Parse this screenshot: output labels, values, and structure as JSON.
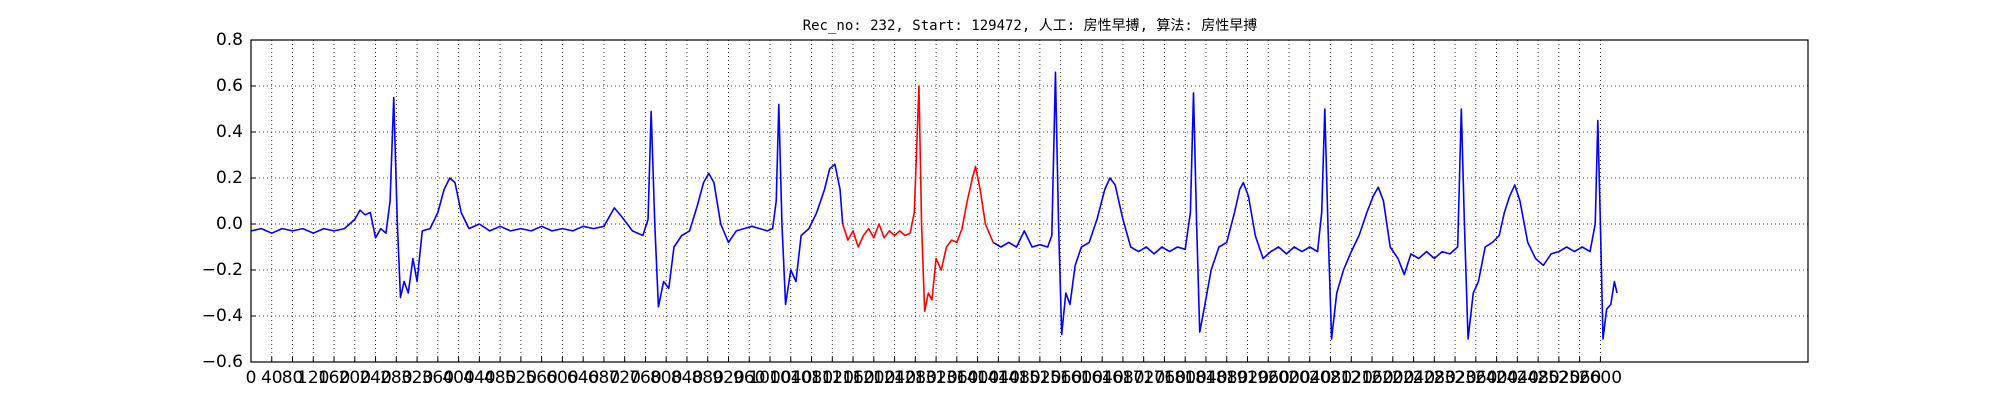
{
  "chart_data": {
    "type": "line",
    "title": "Rec_no: 232, Start: 129472, 人工: 房性早搏, 算法: 房性早搏",
    "xlim": [
      0,
      3000
    ],
    "ylim": [
      -0.6,
      0.8
    ],
    "xticks": [
      0,
      40,
      80,
      120,
      160,
      200,
      240,
      280,
      320,
      360,
      400,
      440,
      480,
      520,
      560,
      600,
      640,
      680,
      720,
      760,
      800,
      840,
      880,
      920,
      960,
      1000,
      1040,
      1080,
      1120,
      1160,
      1200,
      1240,
      1280,
      1320,
      1360,
      1400,
      1440,
      1480,
      1520,
      1560,
      1600,
      1640,
      1680,
      1720,
      1760,
      1800,
      1840,
      1880,
      1920,
      1960,
      2000,
      2040,
      2080,
      2120,
      2160,
      2200,
      2240,
      2280,
      2320,
      2360,
      2400,
      2440,
      2480,
      2520,
      2560,
      2600
    ],
    "yticks": [
      {
        "value": -0.6,
        "label": "−0.6"
      },
      {
        "value": -0.4,
        "label": "−0.4"
      },
      {
        "value": -0.2,
        "label": "−0.2"
      },
      {
        "value": 0,
        "label": "0.0"
      },
      0.2,
      0.4,
      0.6,
      0.8
    ],
    "grid": true,
    "series": [
      {
        "color": "#0000ff",
        "x": [
          0,
          20,
          40,
          60,
          80,
          100,
          120,
          140,
          160,
          180,
          200,
          210,
          220,
          230,
          240,
          250,
          260,
          268,
          275,
          282,
          288,
          295,
          303,
          312,
          320,
          330,
          345,
          360,
          372,
          383,
          393,
          405,
          420,
          440,
          460,
          480,
          500,
          520,
          540,
          560,
          580,
          600,
          620,
          640,
          660,
          680,
          700,
          715,
          735,
          755,
          765,
          771,
          778,
          785,
          795,
          805,
          815,
          830,
          845,
          860,
          872,
          882,
          892,
          905,
          920,
          935,
          950,
          965,
          980,
          995,
          1005,
          1012,
          1017,
          1023,
          1030,
          1040,
          1050,
          1060,
          1075,
          1090,
          1105,
          1115,
          1125,
          1135,
          1140
        ],
        "values": [
          -0.03,
          -0.02,
          -0.04,
          -0.02,
          -0.03,
          -0.02,
          -0.04,
          -0.02,
          -0.03,
          -0.02,
          0.02,
          0.06,
          0.04,
          0.05,
          -0.06,
          -0.02,
          -0.04,
          0.1,
          0.55,
          0.0,
          -0.32,
          -0.25,
          -0.3,
          -0.15,
          -0.25,
          -0.03,
          -0.02,
          0.05,
          0.15,
          0.2,
          0.18,
          0.05,
          -0.02,
          0.0,
          -0.03,
          -0.01,
          -0.03,
          -0.02,
          -0.03,
          -0.01,
          -0.03,
          -0.02,
          -0.03,
          -0.01,
          -0.02,
          -0.01,
          0.07,
          0.03,
          -0.03,
          -0.05,
          0.02,
          0.49,
          0.0,
          -0.36,
          -0.25,
          -0.28,
          -0.1,
          -0.05,
          -0.03,
          0.08,
          0.18,
          0.22,
          0.18,
          0.0,
          -0.08,
          -0.03,
          -0.02,
          -0.01,
          -0.02,
          -0.03,
          -0.02,
          0.1,
          0.52,
          0.0,
          -0.35,
          -0.2,
          -0.25,
          -0.05,
          -0.02,
          0.05,
          0.15,
          0.24,
          0.26,
          0.15,
          0.0
        ]
      },
      {
        "color": "#ff0000",
        "x": [
          1140,
          1150,
          1160,
          1170,
          1180,
          1190,
          1200,
          1210,
          1220,
          1230,
          1240,
          1250,
          1260,
          1270,
          1278,
          1287,
          1292,
          1298,
          1305,
          1312,
          1320,
          1330,
          1340,
          1350,
          1360,
          1370,
          1380,
          1390,
          1396,
          1405,
          1415,
          1430
        ],
        "values": [
          0.0,
          -0.07,
          -0.03,
          -0.1,
          -0.05,
          -0.02,
          -0.06,
          0.0,
          -0.06,
          -0.03,
          -0.05,
          -0.03,
          -0.05,
          -0.04,
          0.05,
          0.6,
          0.0,
          -0.38,
          -0.3,
          -0.33,
          -0.15,
          -0.2,
          -0.1,
          -0.07,
          -0.08,
          -0.02,
          0.1,
          0.2,
          0.25,
          0.15,
          0.0,
          -0.08
        ]
      },
      {
        "color": "#0000ff",
        "x": [
          1430,
          1445,
          1460,
          1475,
          1490,
          1505,
          1520,
          1535,
          1543,
          1550,
          1556,
          1562,
          1570,
          1578,
          1588,
          1600,
          1615,
          1630,
          1645,
          1655,
          1665,
          1680,
          1695,
          1710,
          1725,
          1740,
          1755,
          1770,
          1785,
          1800,
          1810,
          1816,
          1822,
          1828,
          1838,
          1850,
          1865,
          1880,
          1895,
          1905,
          1912,
          1922,
          1935,
          1950,
          1965,
          1980,
          1995,
          2010,
          2025,
          2040,
          2055,
          2063,
          2069,
          2075,
          2082,
          2092,
          2105,
          2120,
          2135,
          2150,
          2162,
          2172,
          2182,
          2195,
          2210,
          2222,
          2235,
          2250,
          2265,
          2280,
          2295,
          2310,
          2325,
          2332,
          2338,
          2345,
          2355,
          2365,
          2378,
          2392,
          2405,
          2415,
          2425,
          2435,
          2445,
          2460,
          2475,
          2490,
          2505,
          2520,
          2535,
          2550,
          2565,
          2580,
          2590,
          2595,
          2600,
          2605,
          2612,
          2620,
          2627,
          2632
        ],
        "values": [
          -0.08,
          -0.1,
          -0.08,
          -0.1,
          -0.03,
          -0.1,
          -0.09,
          -0.1,
          -0.05,
          0.66,
          0.0,
          -0.48,
          -0.3,
          -0.35,
          -0.18,
          -0.1,
          -0.08,
          0.02,
          0.15,
          0.2,
          0.17,
          0.02,
          -0.1,
          -0.12,
          -0.1,
          -0.13,
          -0.1,
          -0.12,
          -0.1,
          -0.11,
          0.05,
          0.57,
          0.0,
          -0.47,
          -0.35,
          -0.2,
          -0.1,
          -0.08,
          0.05,
          0.15,
          0.18,
          0.12,
          -0.05,
          -0.15,
          -0.12,
          -0.1,
          -0.13,
          -0.1,
          -0.12,
          -0.1,
          -0.12,
          0.05,
          0.5,
          0.0,
          -0.5,
          -0.3,
          -0.2,
          -0.12,
          -0.05,
          0.05,
          0.12,
          0.16,
          0.1,
          -0.1,
          -0.15,
          -0.22,
          -0.13,
          -0.15,
          -0.12,
          -0.15,
          -0.12,
          -0.13,
          -0.1,
          0.5,
          0.0,
          -0.5,
          -0.3,
          -0.25,
          -0.1,
          -0.08,
          -0.05,
          0.05,
          0.12,
          0.17,
          0.1,
          -0.08,
          -0.15,
          -0.18,
          -0.13,
          -0.12,
          -0.1,
          -0.12,
          -0.1,
          -0.12,
          0.0,
          0.45,
          0.0,
          -0.5,
          -0.37,
          -0.35,
          -0.25,
          -0.3
        ]
      }
    ]
  }
}
